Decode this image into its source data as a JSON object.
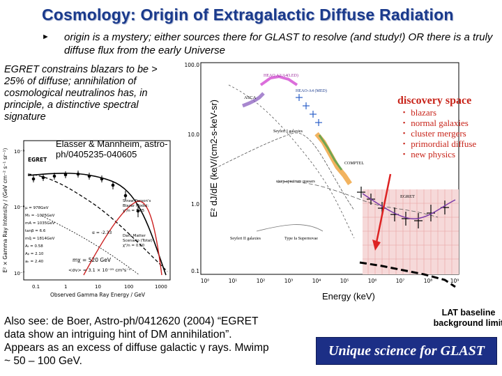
{
  "slide": {
    "title": "Cosmology: Origin of Extragalactic Diffuse Radiation",
    "bullet_text": "origin is a mystery; either sources there for GLAST to resolve (and study!) OR there is a truly diffuse flux from the early Universe",
    "egret_text": "EGRET constrains blazars to be > 25% of diffuse; annihilation of cosmological neutralinos has, in principle, a distinctive spectral signature",
    "elasser_ref": "Elasser & Mannheim, astro-ph/0405235-040605",
    "also_see": "Also see: de Boer, Astro-ph/0412620 (2004) “EGRET data show an intriguing hint of DM annihilation”. Appears as an excess of diffuse galactic γ rays. Mwimp ~ 50 – 100 GeV.",
    "lat_baseline": "LAT baseline background limit",
    "unique_science": "Unique science for GLAST"
  },
  "left_plot": {
    "ylabel": "E² × Gamma Ray Intensity / (GeV cm⁻² s⁻¹ sr⁻¹)",
    "xlabel": "Observed Gamma Ray Energy / GeV",
    "egret_label": "EGRET",
    "legend": [
      "Straw Person's",
      "Blazar Model:",
      "χ²/n = 1.05",
      "Dark Matter",
      "Scenario (Total)",
      "χ²/n = 0.60"
    ],
    "params": [
      "μ = 978GeV",
      "M₀ = -1005GeV",
      "mA = 1035GeV",
      "tanβ = 6.6",
      "mq̃ = 1814GeV",
      "Aₜ = 0.58",
      "Aᵦ = 2.10",
      "aₖ = 2.40"
    ],
    "alpha_label": "α = -2.33",
    "mchi_label": "mχ = 520 GeV",
    "sigma_label": "<σv> = 3.1 × 10⁻²⁵ cm³s⁻¹",
    "xticks": [
      "0.1",
      "1",
      "10",
      "100",
      "1000"
    ],
    "yticks": [
      "10⁻⁵",
      "10⁻⁶",
      "10⁻⁷"
    ]
  },
  "right_plot": {
    "ylabel": "E² dJ/dE (keV/(cm2-s-keV-sr)",
    "xlabel": "Energy (keV)",
    "yticks": [
      "100.0",
      "10.0",
      "1.0",
      "0.1"
    ],
    "xticks": [
      "10⁰",
      "10¹",
      "10²",
      "10³",
      "10⁴",
      "10⁵",
      "10⁶",
      "10⁷",
      "10⁸",
      "10⁹"
    ],
    "labels": {
      "heao1": "HEAO A2/A4(LED)",
      "heao1_med": "HEAO-A4 (MED)",
      "asca": "ASCA",
      "seyfert1": "Seyfert I galaxies",
      "comptel": "COMPTEL",
      "steep": "steep-spectrum quasars",
      "egret": "EGRET",
      "seyfert2": "Seyfert II galaxies",
      "type1a": "Type Ia Supernovae"
    },
    "discovery_title": "discovery space",
    "discovery_items": [
      "blazars",
      "normal galaxies",
      "cluster mergers",
      "primordial diffuse",
      "new physics"
    ]
  }
}
